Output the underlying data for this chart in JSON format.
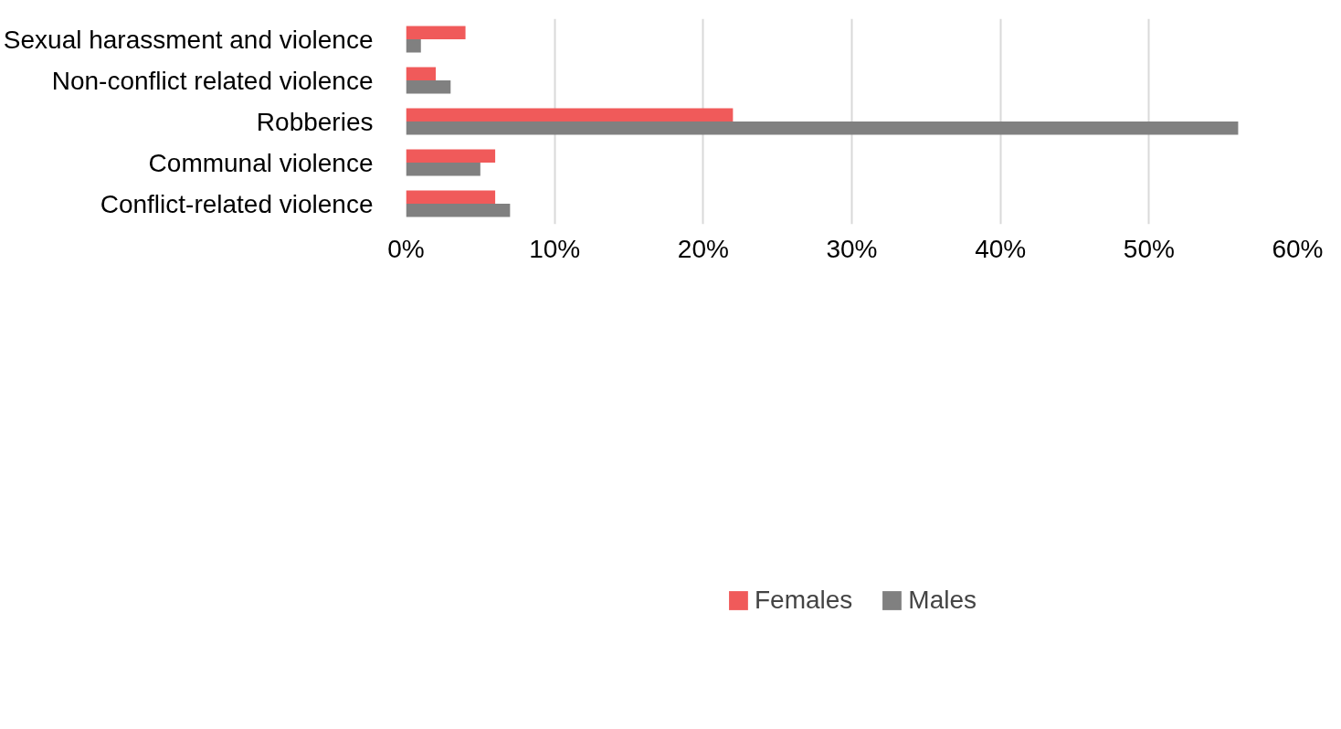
{
  "chart_data": {
    "type": "bar",
    "orientation": "horizontal",
    "categories": [
      "Sexual harassment and violence",
      "Non-conflict related violence",
      "Robberies",
      "Communal violence",
      "Conflict-related violence"
    ],
    "series": [
      {
        "name": "Females",
        "color": "#f05a5a",
        "values": [
          4,
          2,
          22,
          6,
          6
        ]
      },
      {
        "name": "Males",
        "color": "#808080",
        "values": [
          1,
          3,
          56,
          5,
          7
        ]
      }
    ],
    "xlim": [
      0,
      60
    ],
    "xticks": [
      {
        "value": 0,
        "label": "0%"
      },
      {
        "value": 10,
        "label": "10%"
      },
      {
        "value": 20,
        "label": "20%"
      },
      {
        "value": 30,
        "label": "30%"
      },
      {
        "value": 40,
        "label": "40%"
      },
      {
        "value": 50,
        "label": "50%"
      },
      {
        "value": 60,
        "label": "60%"
      }
    ],
    "grid": "x",
    "legend": "bottom"
  }
}
